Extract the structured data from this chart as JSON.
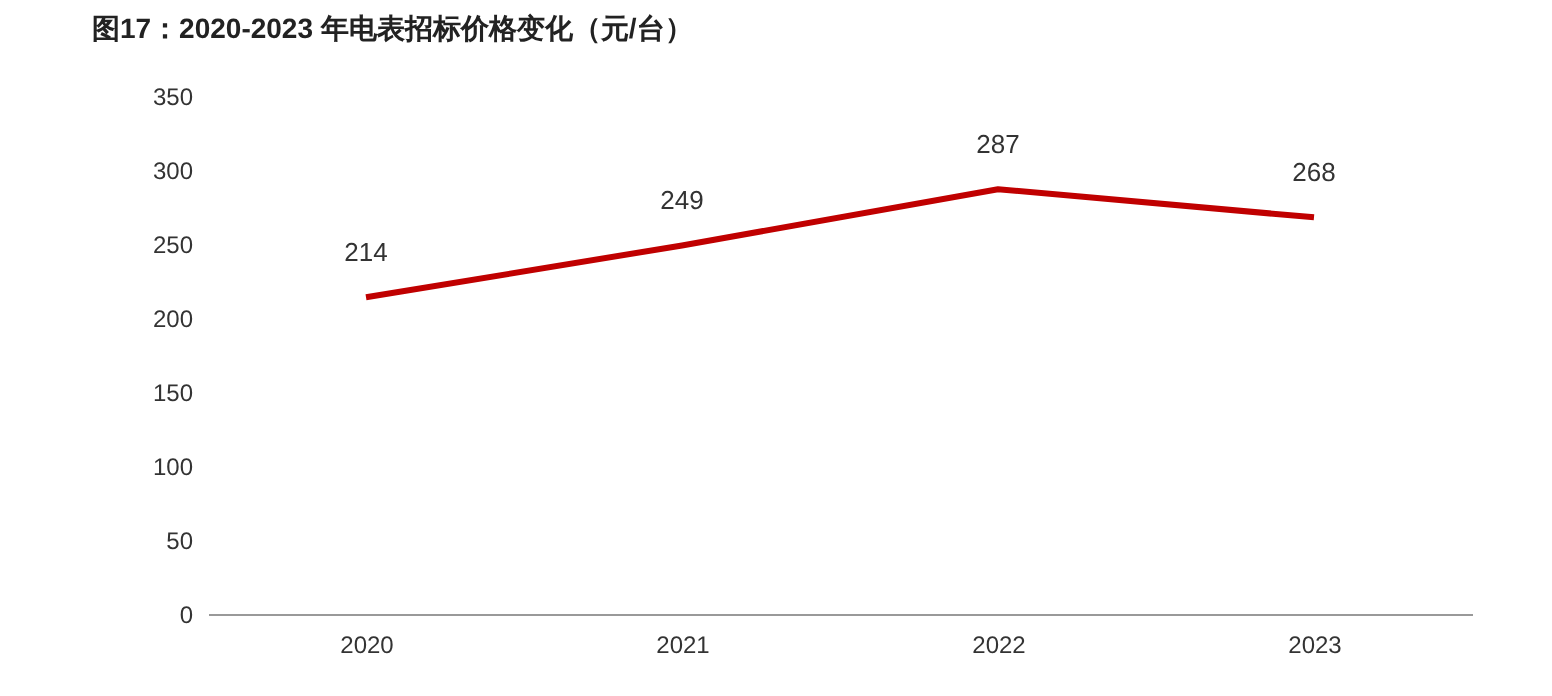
{
  "chart_data": {
    "type": "line",
    "title": "图17：2020-2023 年电表招标价格变化（元/台）",
    "categories": [
      "2020",
      "2021",
      "2022",
      "2023"
    ],
    "series": [
      {
        "color": "#c00000",
        "values": [
          214,
          249,
          287,
          268
        ]
      }
    ],
    "ylim": [
      0,
      350
    ],
    "yticks": [
      0,
      50,
      100,
      150,
      200,
      250,
      300,
      350
    ],
    "data_labels": true,
    "grid": false,
    "marker": "none",
    "line_style": "solid"
  }
}
